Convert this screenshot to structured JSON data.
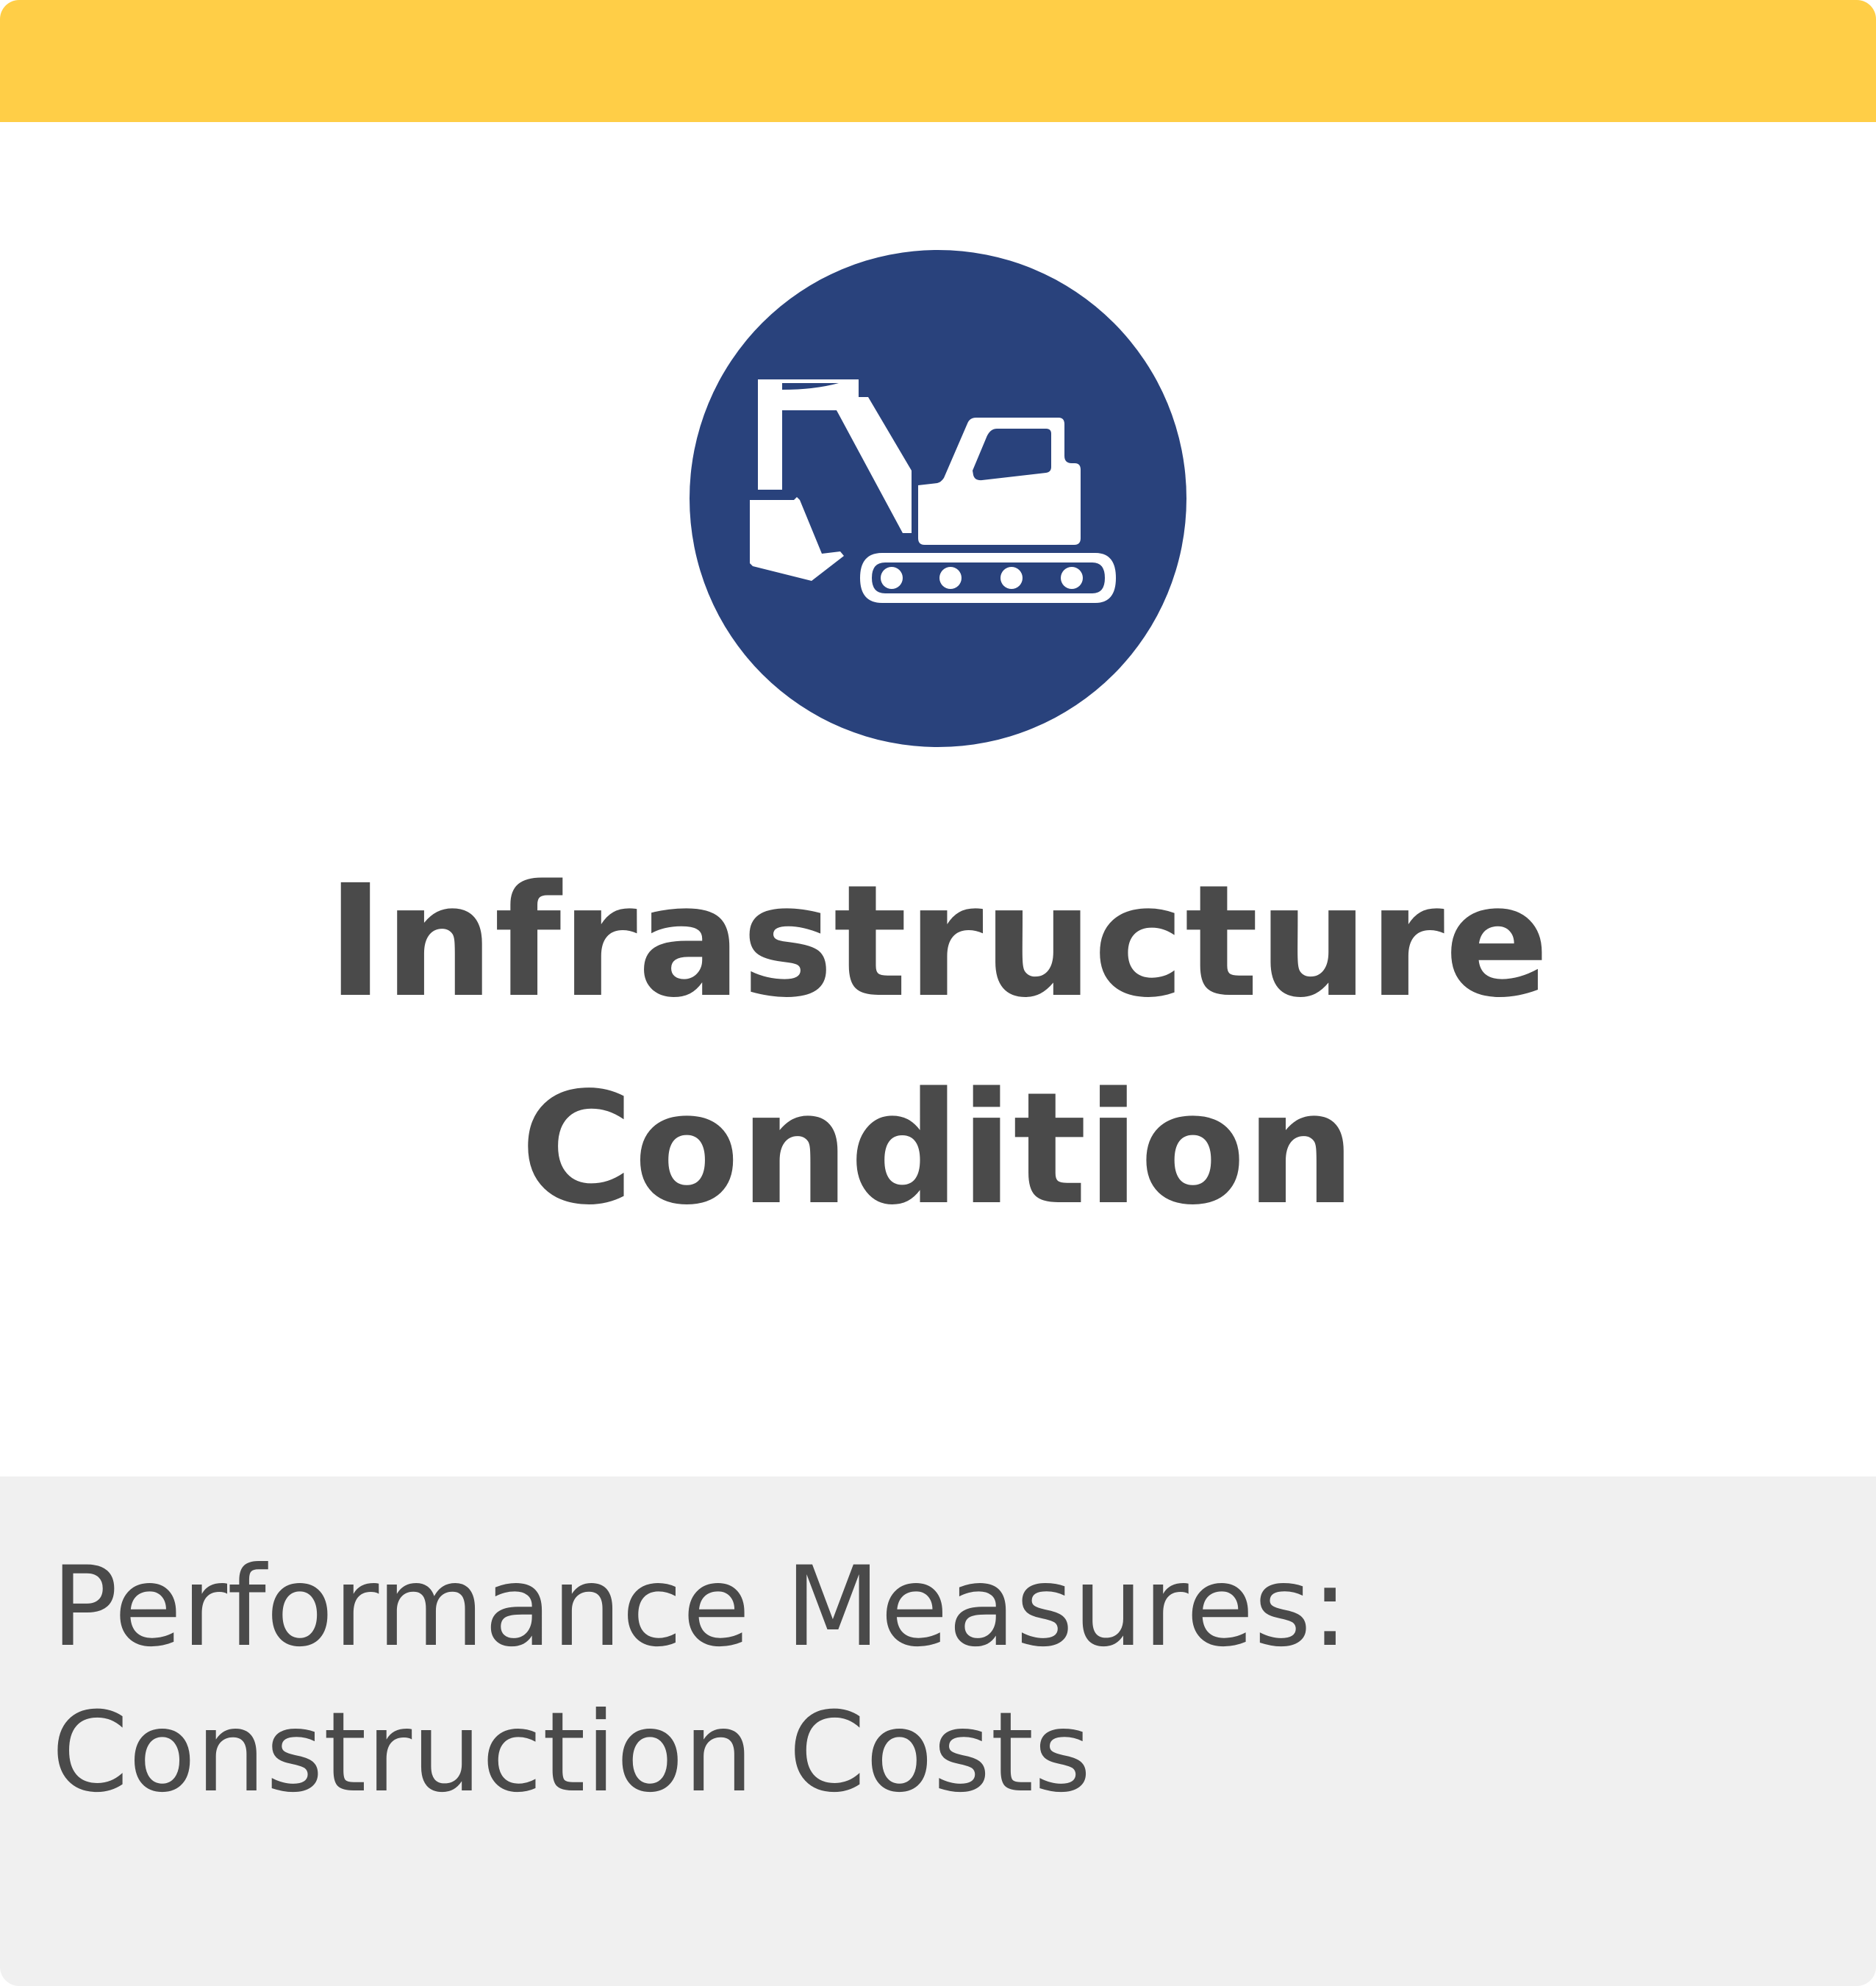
{
  "card": {
    "accent_color": "#FFCE47",
    "icon": {
      "name": "excavator-icon",
      "background_color": "#29427C"
    },
    "title_line1": "Infrastructure",
    "title_line2": "Condition",
    "footer": {
      "label": "Performance Measures:",
      "value": "Construction Costs",
      "background_color": "#F0F0F0"
    },
    "text_color": "#4A4A4A"
  }
}
